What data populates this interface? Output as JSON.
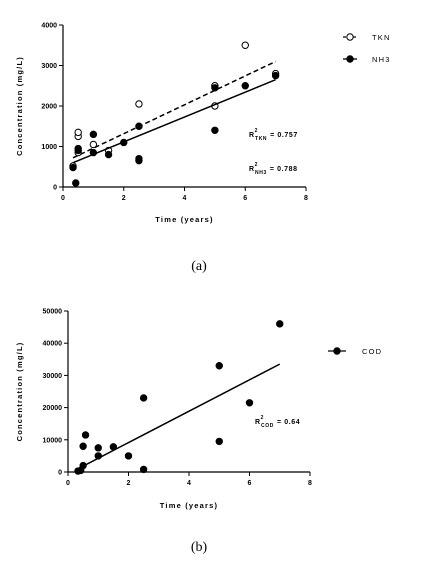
{
  "chart_data": [
    {
      "type": "scatter",
      "panel_caption": "(a)",
      "xlabel": "Time (years)",
      "ylabel": "Concentration (mg/L)",
      "xlim": [
        0,
        8
      ],
      "ylim": [
        0,
        4000
      ],
      "xticks": [
        "0",
        "2",
        "4",
        "6",
        "8"
      ],
      "yticks": [
        "0",
        "1000",
        "2000",
        "3000",
        "4000"
      ],
      "legend_position": "top-right",
      "series": [
        {
          "name": "TKN",
          "marker": "open-circle",
          "line": "dashed",
          "points": [
            [
              0.33,
              520
            ],
            [
              0.5,
              850
            ],
            [
              0.5,
              1250
            ],
            [
              0.5,
              1350
            ],
            [
              1.0,
              1050
            ],
            [
              1.5,
              900
            ],
            [
              2.5,
              2050
            ],
            [
              5.0,
              2000
            ],
            [
              5.0,
              2500
            ],
            [
              6.0,
              3500
            ],
            [
              7.0,
              2800
            ]
          ],
          "fit": [
            [
              0.33,
              720
            ],
            [
              7.0,
              3100
            ]
          ]
        },
        {
          "name": "NH3",
          "marker": "filled-circle",
          "line": "solid",
          "points": [
            [
              0.33,
              480
            ],
            [
              0.42,
              100
            ],
            [
              0.5,
              900
            ],
            [
              0.5,
              950
            ],
            [
              1.0,
              850
            ],
            [
              1.0,
              1300
            ],
            [
              1.5,
              800
            ],
            [
              2.0,
              1100
            ],
            [
              2.5,
              650
            ],
            [
              2.5,
              700
            ],
            [
              2.5,
              1500
            ],
            [
              5.0,
              1400
            ],
            [
              5.0,
              2450
            ],
            [
              6.0,
              2500
            ],
            [
              7.0,
              2750
            ]
          ],
          "fit": [
            [
              0.33,
              600
            ],
            [
              7.0,
              2650
            ]
          ]
        }
      ],
      "annotations": [
        {
          "base": "R",
          "sup": "2",
          "sub": "TKN",
          "value": "= 0.757"
        },
        {
          "base": "R",
          "sup": "2",
          "sub": "NH3",
          "value": "= 0.788"
        }
      ]
    },
    {
      "type": "scatter",
      "panel_caption": "(b)",
      "xlabel": "Time (years)",
      "ylabel": "Concentration (mg/L)",
      "xlim": [
        0,
        8
      ],
      "ylim": [
        0,
        50000
      ],
      "xticks": [
        "0",
        "2",
        "4",
        "6",
        "8"
      ],
      "yticks": [
        "0",
        "10000",
        "20000",
        "30000",
        "40000",
        "50000"
      ],
      "legend_position": "top-right",
      "series": [
        {
          "name": "COD",
          "marker": "filled-circle",
          "line": "solid",
          "points": [
            [
              0.33,
              300
            ],
            [
              0.42,
              500
            ],
            [
              0.5,
              2000
            ],
            [
              0.5,
              8000
            ],
            [
              0.58,
              11500
            ],
            [
              1.0,
              5000
            ],
            [
              1.0,
              7500
            ],
            [
              1.5,
              7800
            ],
            [
              2.0,
              5000
            ],
            [
              2.5,
              800
            ],
            [
              2.5,
              23000
            ],
            [
              5.0,
              9500
            ],
            [
              5.0,
              33000
            ],
            [
              6.0,
              21500
            ],
            [
              7.0,
              46000
            ]
          ],
          "fit": [
            [
              0.33,
              1000
            ],
            [
              7.0,
              33500
            ]
          ]
        }
      ],
      "annotations": [
        {
          "base": "R",
          "sup": "2",
          "sub": "COD",
          "value": "= 0.64"
        }
      ]
    }
  ]
}
